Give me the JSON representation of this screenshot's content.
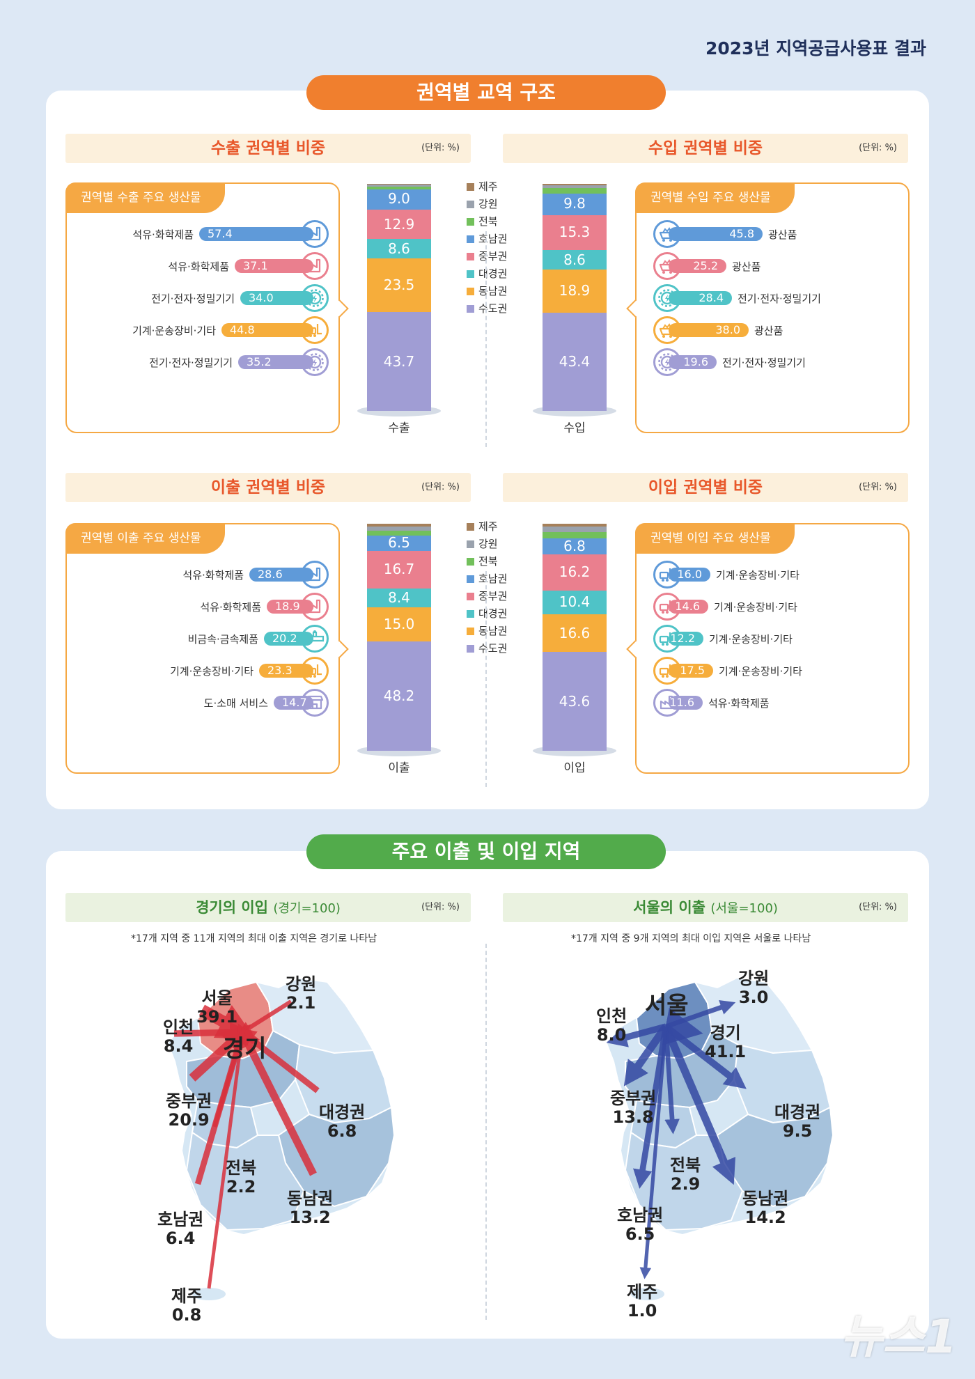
{
  "header": {
    "report_title": "2023년 지역공급사용표 결과"
  },
  "section1": {
    "title": "권역별 교역 구조"
  },
  "section2": {
    "title": "주요 이출 및 이입 지역"
  },
  "regions": [
    "제주",
    "강원",
    "전북",
    "호남권",
    "중부권",
    "대경권",
    "동남권",
    "수도권"
  ],
  "colors": {
    "제주": "#a6805a",
    "강원": "#9aa2ad",
    "전북": "#72c05b",
    "호남권": "#5f9ad9",
    "중부권": "#ea7f8e",
    "대경권": "#4fc3c7",
    "동남권": "#f6ad3b",
    "수도권": "#a09dd4"
  },
  "panels": {
    "export": {
      "title": "수출 권역별 비중",
      "unit": "(단위: %)",
      "box_title": "권역별 수출 주요 생산물",
      "stack_label": "수출",
      "items": [
        {
          "region": "호남권",
          "label": "석유·화학제품",
          "value": "57.4",
          "icon": "factory-icon"
        },
        {
          "region": "중부권",
          "label": "석유·화학제품",
          "value": "37.1",
          "icon": "factory-icon"
        },
        {
          "region": "대경권",
          "label": "전기·전자·정밀기기",
          "value": "34.0",
          "icon": "gear-icon"
        },
        {
          "region": "동남권",
          "label": "기계·운송장비·기타",
          "value": "44.8",
          "icon": "forklift-icon"
        },
        {
          "region": "수도권",
          "label": "전기·전자·정밀기기",
          "value": "35.2",
          "icon": "gear-icon"
        }
      ]
    },
    "import": {
      "title": "수입 권역별 비중",
      "unit": "(단위: %)",
      "box_title": "권역별 수입 주요 생산물",
      "stack_label": "수입",
      "items": [
        {
          "region": "호남권",
          "label": "광산품",
          "value": "45.8",
          "icon": "mining-cart-icon"
        },
        {
          "region": "중부권",
          "label": "광산품",
          "value": "25.2",
          "icon": "mining-cart-icon"
        },
        {
          "region": "대경권",
          "label": "전기·전자·정밀기기",
          "value": "28.4",
          "icon": "gear-icon"
        },
        {
          "region": "동남권",
          "label": "광산품",
          "value": "38.0",
          "icon": "mining-cart-icon"
        },
        {
          "region": "수도권",
          "label": "전기·전자·정밀기기",
          "value": "19.6",
          "icon": "gear-icon"
        }
      ]
    },
    "outflow": {
      "title": "이출 권역별 비중",
      "unit": "(단위: %)",
      "box_title": "권역별 이출 주요 생산물",
      "stack_label": "이출",
      "items": [
        {
          "region": "호남권",
          "label": "석유·화학제품",
          "value": "28.6",
          "icon": "factory-icon"
        },
        {
          "region": "중부권",
          "label": "석유·화학제품",
          "value": "18.9",
          "icon": "factory-icon"
        },
        {
          "region": "대경권",
          "label": "비금속·금속제품",
          "value": "20.2",
          "icon": "pipe-icon"
        },
        {
          "region": "동남권",
          "label": "기계·운송장비·기타",
          "value": "23.3",
          "icon": "forklift-icon"
        },
        {
          "region": "수도권",
          "label": "도·소매 서비스",
          "value": "14.7",
          "icon": "shop-icon"
        }
      ]
    },
    "inflow": {
      "title": "이입 권역별 비중",
      "unit": "(단위: %)",
      "box_title": "권역별 이입 주요 생산물",
      "stack_label": "이입",
      "items": [
        {
          "region": "호남권",
          "label": "기계·운송장비·기타",
          "value": "16.0",
          "icon": "forklift-icon"
        },
        {
          "region": "중부권",
          "label": "기계·운송장비·기타",
          "value": "14.6",
          "icon": "forklift-icon"
        },
        {
          "region": "대경권",
          "label": "기계·운송장비·기타",
          "value": "12.2",
          "icon": "forklift-icon"
        },
        {
          "region": "동남권",
          "label": "기계·운송장비·기타",
          "value": "17.5",
          "icon": "forklift-icon"
        },
        {
          "region": "수도권",
          "label": "석유·화학제품",
          "value": "11.6",
          "icon": "factory-icon"
        }
      ]
    }
  },
  "maps": {
    "gyeonggi": {
      "title": "경기의 이입",
      "title_note": "(경기=100)",
      "unit": "(단위: %)",
      "note": "*17개 지역 중 11개 지역의 최대 이출 지역은 경기로 나타남",
      "center": "경기",
      "arrow_color": "#d9303c",
      "flows": [
        {
          "name": "서울",
          "value": "39.1"
        },
        {
          "name": "인천",
          "value": "8.4"
        },
        {
          "name": "강원",
          "value": "2.1"
        },
        {
          "name": "중부권",
          "value": "20.9"
        },
        {
          "name": "대경권",
          "value": "6.8"
        },
        {
          "name": "전북",
          "value": "2.2"
        },
        {
          "name": "동남권",
          "value": "13.2"
        },
        {
          "name": "호남권",
          "value": "6.4"
        },
        {
          "name": "제주",
          "value": "0.8"
        }
      ]
    },
    "seoul": {
      "title": "서울의 이출",
      "title_note": "(서울=100)",
      "unit": "(단위: %)",
      "note": "*17개 지역 중 9개 지역의 최대 이입 지역은 서울로 나타남",
      "center": "서울",
      "arrow_color": "#3549a3",
      "flows": [
        {
          "name": "강원",
          "value": "3.0"
        },
        {
          "name": "인천",
          "value": "8.0"
        },
        {
          "name": "경기",
          "value": "41.1"
        },
        {
          "name": "중부권",
          "value": "13.8"
        },
        {
          "name": "대경권",
          "value": "9.5"
        },
        {
          "name": "전북",
          "value": "2.9"
        },
        {
          "name": "동남권",
          "value": "14.2"
        },
        {
          "name": "호남권",
          "value": "6.5"
        },
        {
          "name": "제주",
          "value": "1.0"
        }
      ]
    }
  },
  "chart_data": [
    {
      "type": "bar",
      "title": "수출 권역별 비중",
      "categories": [
        "수출"
      ],
      "series": [
        {
          "name": "수도권",
          "values": [
            43.7
          ]
        },
        {
          "name": "동남권",
          "values": [
            23.5
          ]
        },
        {
          "name": "대경권",
          "values": [
            8.6
          ]
        },
        {
          "name": "중부권",
          "values": [
            12.9
          ]
        },
        {
          "name": "호남권",
          "values": [
            9.0
          ]
        },
        {
          "name": "전북",
          "values": [
            1.1
          ]
        },
        {
          "name": "강원",
          "values": [
            0.9
          ]
        },
        {
          "name": "제주",
          "values": [
            0.3
          ]
        }
      ]
    },
    {
      "type": "bar",
      "title": "수입 권역별 비중",
      "categories": [
        "수입"
      ],
      "series": [
        {
          "name": "수도권",
          "values": [
            43.4
          ]
        },
        {
          "name": "동남권",
          "values": [
            18.9
          ]
        },
        {
          "name": "대경권",
          "values": [
            8.6
          ]
        },
        {
          "name": "중부권",
          "values": [
            15.3
          ]
        },
        {
          "name": "호남권",
          "values": [
            9.8
          ]
        },
        {
          "name": "전북",
          "values": [
            2.2
          ]
        },
        {
          "name": "강원",
          "values": [
            1.3
          ]
        },
        {
          "name": "제주",
          "values": [
            0.5
          ]
        }
      ]
    },
    {
      "type": "bar",
      "title": "이출 권역별 비중",
      "categories": [
        "이출"
      ],
      "series": [
        {
          "name": "수도권",
          "values": [
            48.2
          ]
        },
        {
          "name": "동남권",
          "values": [
            15.0
          ]
        },
        {
          "name": "대경권",
          "values": [
            8.4
          ]
        },
        {
          "name": "중부권",
          "values": [
            16.7
          ]
        },
        {
          "name": "호남권",
          "values": [
            6.5
          ]
        },
        {
          "name": "전북",
          "values": [
            2.4
          ]
        },
        {
          "name": "강원",
          "values": [
            1.8
          ]
        },
        {
          "name": "제주",
          "values": [
            1.0
          ]
        }
      ]
    },
    {
      "type": "bar",
      "title": "이입 권역별 비중",
      "categories": [
        "이입"
      ],
      "series": [
        {
          "name": "수도권",
          "values": [
            43.6
          ]
        },
        {
          "name": "동남권",
          "values": [
            16.6
          ]
        },
        {
          "name": "대경권",
          "values": [
            10.4
          ]
        },
        {
          "name": "중부권",
          "values": [
            16.2
          ]
        },
        {
          "name": "호남권",
          "values": [
            6.8
          ]
        },
        {
          "name": "전북",
          "values": [
            3.0
          ]
        },
        {
          "name": "강원",
          "values": [
            2.4
          ]
        },
        {
          "name": "제주",
          "values": [
            1.0
          ]
        }
      ]
    }
  ],
  "watermark": "뉴스1"
}
